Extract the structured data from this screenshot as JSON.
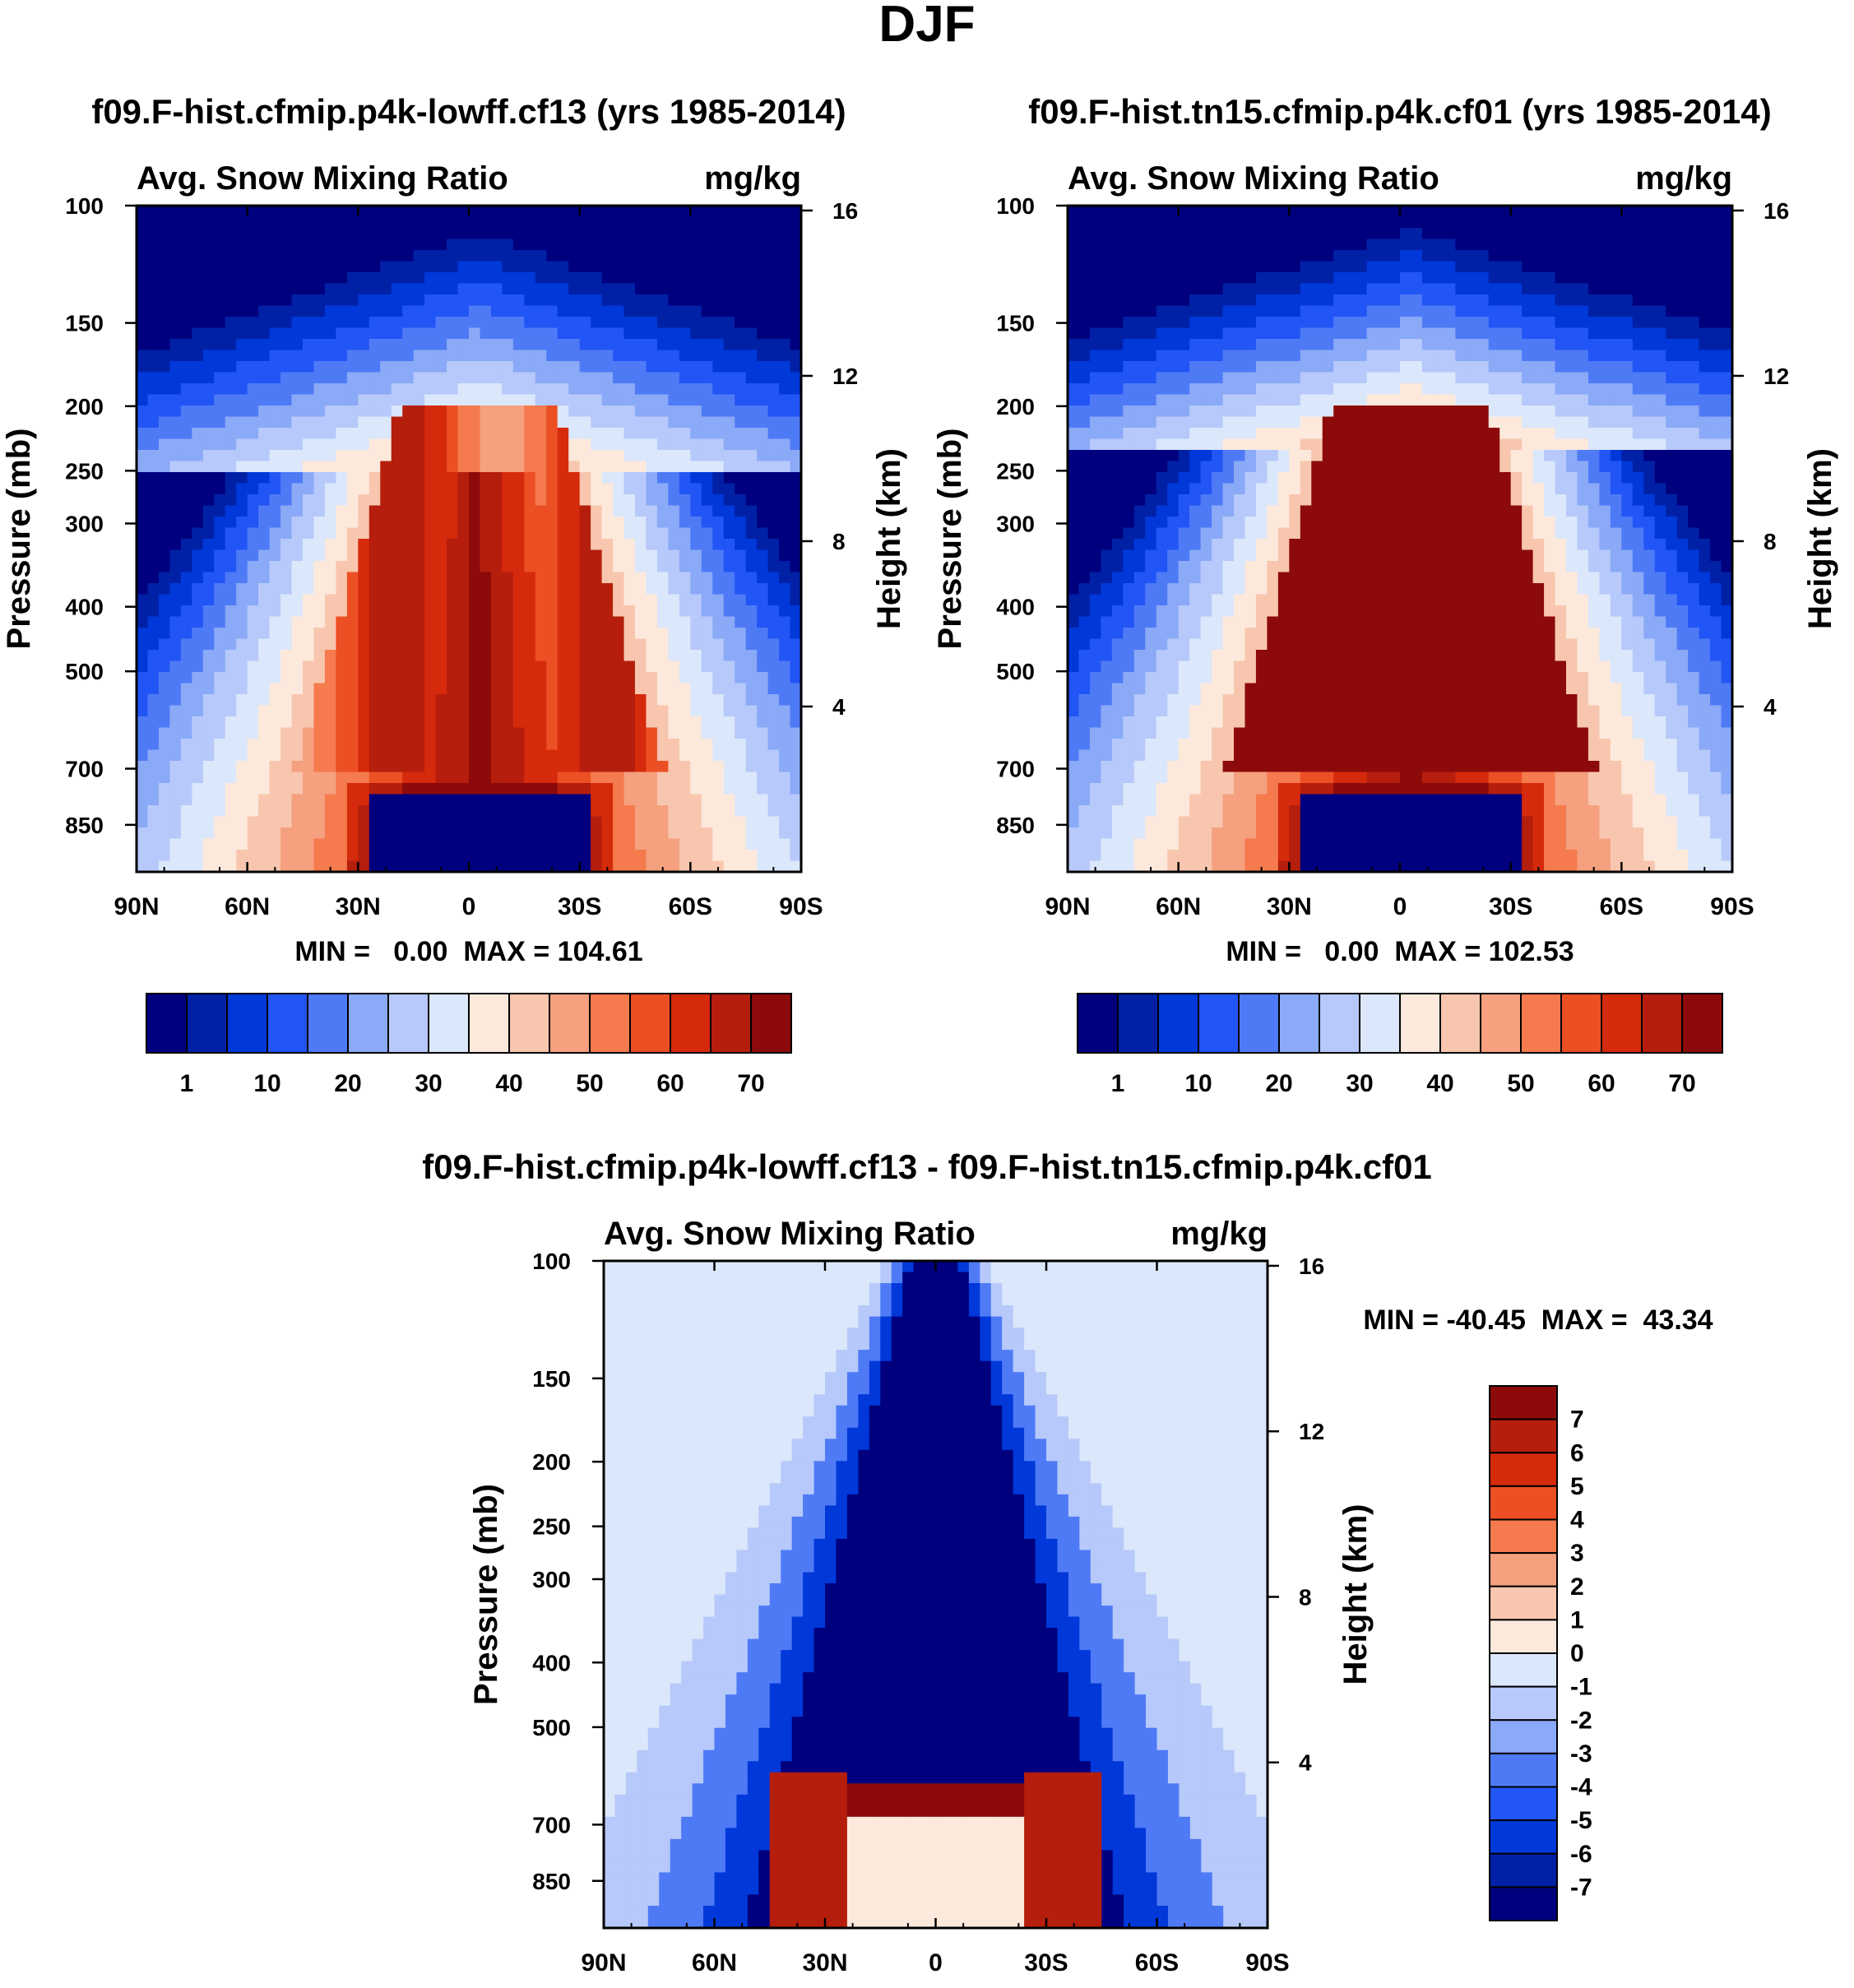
{
  "figure": {
    "title": "DJF"
  },
  "colors": {
    "abs_scale": [
      "#00007f",
      "#0021a6",
      "#0038d9",
      "#2255f5",
      "#4f7af5",
      "#8aa9f7",
      "#b6c9fa",
      "#dbe7fa",
      "#fde9dc",
      "#f8c6ae",
      "#f5a07f",
      "#f57a4d",
      "#ec4f24",
      "#d62a0c",
      "#b51e0c",
      "#8c0a0a"
    ],
    "diff_scale": [
      "#00007f",
      "#0021a6",
      "#0038d9",
      "#2255f5",
      "#4f7af5",
      "#8aa9f7",
      "#b6c9fa",
      "#dbe7fa",
      "#fde9dc",
      "#f8c6ae",
      "#f5a07f",
      "#f57a4d",
      "#ec4f24",
      "#d62a0c",
      "#b51e0c",
      "#8c0a0a"
    ]
  },
  "chart_data": [
    {
      "type": "heatmap",
      "title": "f09.F-hist.cfmip.p4k-lowff.cf13 (yrs 1985-2014)",
      "left_label": "Avg. Snow Mixing Ratio",
      "right_label": "mg/kg",
      "ylabel": "Pressure (mb)",
      "y2label": "Height (km)",
      "x_ticks": [
        "90N",
        "60N",
        "30N",
        "0",
        "30S",
        "60S",
        "90S"
      ],
      "y_ticks": [
        100,
        150,
        200,
        250,
        300,
        400,
        500,
        700,
        850
      ],
      "y2_ticks": [
        16,
        12,
        8,
        4
      ],
      "ylim": [
        1000,
        100
      ],
      "min_max_text": "MIN =   0.00  MAX = 104.61",
      "colorbar_labels": [
        "1",
        "10",
        "20",
        "30",
        "40",
        "50",
        "60",
        "70"
      ]
    },
    {
      "type": "heatmap",
      "title": "f09.F-hist.tn15.cfmip.p4k.cf01 (yrs 1985-2014)",
      "left_label": "Avg. Snow Mixing Ratio",
      "right_label": "mg/kg",
      "ylabel": "Pressure (mb)",
      "y2label": "Height (km)",
      "x_ticks": [
        "90N",
        "60N",
        "30N",
        "0",
        "30S",
        "60S",
        "90S"
      ],
      "y_ticks": [
        100,
        150,
        200,
        250,
        300,
        400,
        500,
        700,
        850
      ],
      "y2_ticks": [
        16,
        12,
        8,
        4
      ],
      "ylim": [
        1000,
        100
      ],
      "min_max_text": "MIN =   0.00  MAX = 102.53",
      "colorbar_labels": [
        "1",
        "10",
        "20",
        "30",
        "40",
        "50",
        "60",
        "70"
      ]
    },
    {
      "type": "heatmap",
      "title": "f09.F-hist.cfmip.p4k-lowff.cf13 - f09.F-hist.tn15.cfmip.p4k.cf01",
      "left_label": "Avg. Snow Mixing Ratio",
      "right_label": "mg/kg",
      "ylabel": "Pressure (mb)",
      "y2label": "Height (km)",
      "x_ticks": [
        "90N",
        "60N",
        "30N",
        "0",
        "30S",
        "60S",
        "90S"
      ],
      "y_ticks": [
        100,
        150,
        200,
        250,
        300,
        400,
        500,
        700,
        850
      ],
      "y2_ticks": [
        16,
        12,
        8,
        4
      ],
      "ylim": [
        1000,
        100
      ],
      "min_max_text": "MIN = -40.45  MAX =  43.34",
      "colorbar_labels": [
        "7",
        "6",
        "5",
        "4",
        "3",
        "2",
        "1",
        "0",
        "-1",
        "-2",
        "-3",
        "-4",
        "-5",
        "-6",
        "-7"
      ]
    }
  ]
}
